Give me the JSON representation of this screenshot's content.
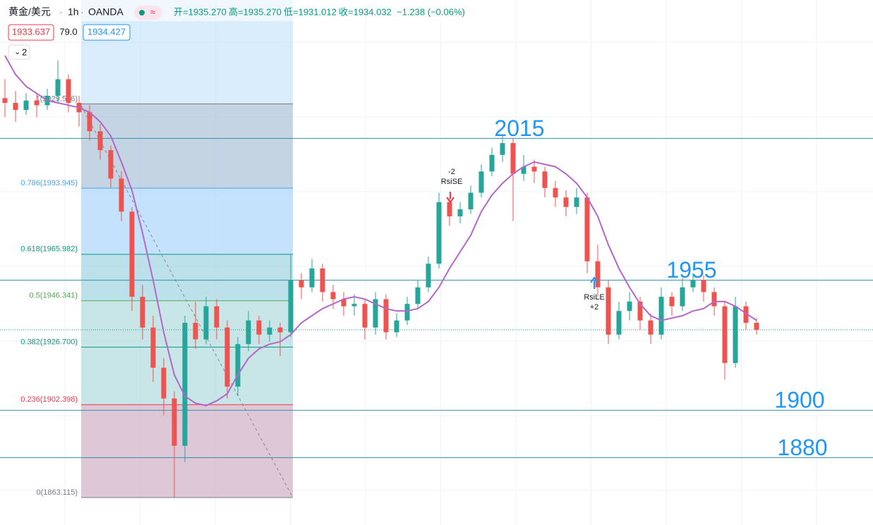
{
  "header": {
    "symbol": "黄金/美元",
    "interval": "1h",
    "source": "OANDA",
    "open": "开=1935.270",
    "high": "高=1935.270",
    "low": "低=1931.012",
    "close": {
      "value": 1934.032,
      "label": "收=1934.032"
    },
    "change": "−1.238 (−0.06%)",
    "price_boxes": [
      "1933.637",
      "79.0",
      "1934.427"
    ],
    "dropdown": "2"
  },
  "chart_data": {
    "type": "candlestick",
    "up_color": "#26a69a",
    "down_color": "#ef5350",
    "ylim": [
      1851.5,
      2073.5
    ],
    "ohlc": [
      [
        2032,
        2040,
        2024,
        2030
      ],
      [
        2030,
        2035,
        2022,
        2027
      ],
      [
        2027,
        2034,
        2025,
        2031
      ],
      [
        2031,
        2034,
        2024,
        2029
      ],
      [
        2029,
        2036,
        2027,
        2033
      ],
      [
        2033,
        2048,
        2030,
        2040
      ],
      [
        2040,
        2042,
        2026,
        2030
      ],
      [
        2030,
        2033,
        2020,
        2026
      ],
      [
        2026,
        2029,
        2014,
        2018
      ],
      [
        2018,
        2021,
        2006,
        2010
      ],
      [
        2010,
        2012,
        1994,
        1998
      ],
      [
        1998,
        2001,
        1980,
        1984
      ],
      [
        1984,
        1986,
        1942,
        1948
      ],
      [
        1948,
        1953,
        1930,
        1935
      ],
      [
        1935,
        1940,
        1912,
        1918
      ],
      [
        1918,
        1922,
        1898,
        1905
      ],
      [
        1905,
        1908,
        1863,
        1885
      ],
      [
        1885,
        1940,
        1878,
        1937
      ],
      [
        1937,
        1946,
        1926,
        1930
      ],
      [
        1930,
        1948,
        1928,
        1944
      ],
      [
        1944,
        1947,
        1930,
        1935
      ],
      [
        1935,
        1938,
        1905,
        1910
      ],
      [
        1910,
        1931,
        1906,
        1928
      ],
      [
        1928,
        1942,
        1925,
        1938
      ],
      [
        1938,
        1940,
        1928,
        1932
      ],
      [
        1932,
        1938,
        1929,
        1935
      ],
      [
        1935,
        1937,
        1923,
        1933
      ],
      [
        1933,
        1966,
        1931,
        1955
      ],
      [
        1955,
        1958,
        1947,
        1952
      ],
      [
        1952,
        1964,
        1950,
        1960
      ],
      [
        1960,
        1962,
        1946,
        1950
      ],
      [
        1950,
        1953,
        1943,
        1947
      ],
      [
        1947,
        1950,
        1940,
        1944
      ],
      [
        1944,
        1949,
        1940,
        1945
      ],
      [
        1945,
        1947,
        1930,
        1935
      ],
      [
        1935,
        1950,
        1932,
        1947
      ],
      [
        1947,
        1949,
        1930,
        1933
      ],
      [
        1933,
        1941,
        1931,
        1938
      ],
      [
        1938,
        1948,
        1936,
        1945
      ],
      [
        1945,
        1955,
        1943,
        1952
      ],
      [
        1952,
        1965,
        1950,
        1962
      ],
      [
        1962,
        1992,
        1960,
        1988
      ],
      [
        1988,
        1990,
        1978,
        1982
      ],
      [
        1982,
        1988,
        1979,
        1985
      ],
      [
        1985,
        1995,
        1983,
        1992
      ],
      [
        1992,
        2004,
        1990,
        2001
      ],
      [
        2001,
        2011,
        1999,
        2008
      ],
      [
        2008,
        2016,
        2005,
        2013
      ],
      [
        2013,
        2015,
        1980,
        2000
      ],
      [
        2000,
        2008,
        1997,
        2003
      ],
      [
        2003,
        2006,
        1996,
        2001
      ],
      [
        2001,
        2003,
        1990,
        1994
      ],
      [
        1994,
        1997,
        1986,
        1990
      ],
      [
        1990,
        1993,
        1982,
        1986
      ],
      [
        1986,
        1994,
        1983,
        1990
      ],
      [
        1990,
        1992,
        1958,
        1963
      ],
      [
        1963,
        1970,
        1948,
        1952
      ],
      [
        1952,
        1955,
        1928,
        1932
      ],
      [
        1932,
        1946,
        1930,
        1942
      ],
      [
        1942,
        1950,
        1938,
        1946
      ],
      [
        1946,
        1948,
        1934,
        1938
      ],
      [
        1938,
        1941,
        1928,
        1932
      ],
      [
        1932,
        1952,
        1930,
        1948
      ],
      [
        1948,
        1950,
        1940,
        1944
      ],
      [
        1944,
        1956,
        1942,
        1952
      ],
      [
        1952,
        1958,
        1950,
        1955
      ],
      [
        1955,
        1957,
        1946,
        1950
      ],
      [
        1950,
        1952,
        1940,
        1944
      ],
      [
        1944,
        1946,
        1913,
        1920
      ],
      [
        1920,
        1948,
        1918,
        1944
      ],
      [
        1944,
        1946,
        1934,
        1937
      ],
      [
        1937,
        1939,
        1932,
        1934
      ]
    ],
    "ma": {
      "color": "#b567c8",
      "values": [
        2050,
        2042,
        2037,
        2034,
        2031,
        2030,
        2029,
        2028,
        2026,
        2022,
        2016,
        2005,
        1993,
        1975,
        1955,
        1933,
        1915,
        1906,
        1903,
        1902,
        1904,
        1907,
        1915,
        1922,
        1926,
        1928,
        1929,
        1932,
        1937,
        1940,
        1943,
        1945,
        1947,
        1948,
        1947,
        1945,
        1943,
        1942,
        1942,
        1943,
        1946,
        1952,
        1960,
        1967,
        1974,
        1984,
        1991,
        1996,
        2000,
        2003,
        2005,
        2004,
        2003,
        2000,
        1996,
        1990,
        1982,
        1970,
        1960,
        1952,
        1945,
        1940,
        1938,
        1939,
        1940,
        1942,
        1943,
        1946,
        1946,
        1944,
        1941,
        1938
      ]
    },
    "fib": [
      {
        "value": 2029.566,
        "label": "1(2029.566)",
        "color": "#787b86",
        "zone": "rgba(120,123,134,0.22)"
      },
      {
        "value": 1993.945,
        "label": "0.786(1993.945)",
        "color": "#42a5f5",
        "zone": "rgba(66,165,245,0.14)"
      },
      {
        "value": 1965.982,
        "label": "0.618(1965.982)",
        "color": "#089981",
        "zone": "rgba(8,153,129,0.14)"
      },
      {
        "value": 1946.341,
        "label": "0.5(1946.341)",
        "color": "#4caf50",
        "zone": "rgba(76,175,80,0.12)"
      },
      {
        "value": 1926.7,
        "label": "0.382(1926.700)",
        "color": "#089981",
        "zone": "rgba(76,175,80,0.12)"
      },
      {
        "value": 1902.398,
        "label": "0.236(1902.398)",
        "color": "#f23645",
        "zone": "rgba(242,54,69,0.2)"
      },
      {
        "value": 1863.115,
        "label": "0(1863.115)",
        "color": "#787b86"
      }
    ],
    "levels": [
      2015,
      1955,
      1900,
      1880
    ],
    "level_color": "#2196f3",
    "annotations": [
      {
        "lines": [
          "-2",
          "RsiSE"
        ],
        "color": "#f23645"
      },
      {
        "lines": [
          "RsiLE",
          "+2"
        ],
        "color": "#2196f3"
      }
    ]
  }
}
